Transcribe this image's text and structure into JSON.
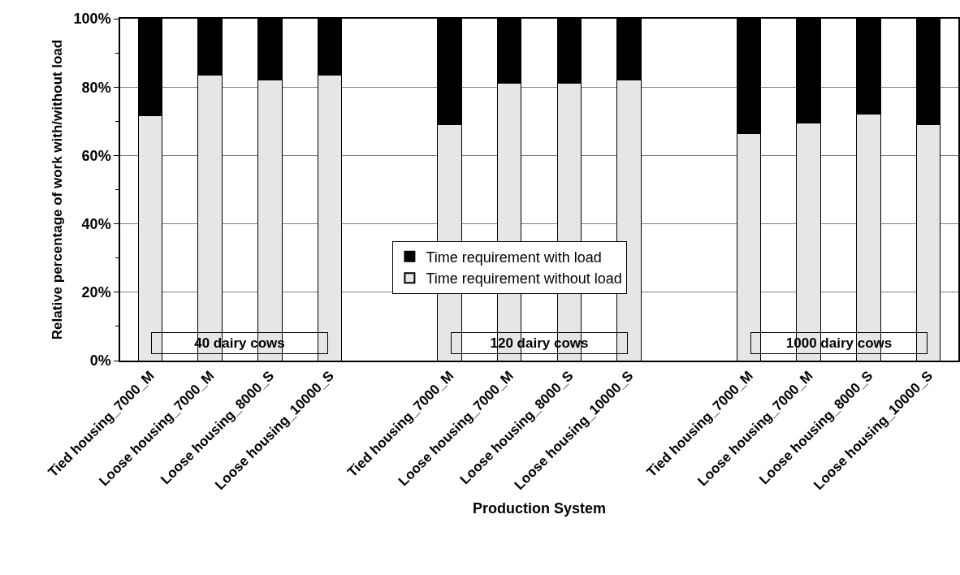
{
  "chart_data": {
    "type": "bar",
    "stacked": true,
    "xlabel": "Production System",
    "ylabel": "Relative percentage of work with/without load",
    "categories": [
      "Tied housing_7000_M",
      "Loose housing_7000_M",
      "Loose housing_8000_S",
      "Loose housing_10000_S",
      null,
      "Tied housing_7000_M",
      "Loose housing_7000_M",
      "Loose housing_8000_S",
      "Loose housing_10000_S",
      null,
      "Tied housing_7000_M",
      "Loose housing_7000_M",
      "Loose housing_8000_S",
      "Loose housing_10000_S"
    ],
    "series": [
      {
        "name": "Time requirement without load",
        "color": "#e6e6e6",
        "values": [
          71.5,
          83.5,
          82,
          83.5,
          null,
          69,
          81,
          81,
          82,
          null,
          66.5,
          69.5,
          72,
          69
        ]
      },
      {
        "name": "Time requirement with load",
        "color": "#000000",
        "values": [
          28.5,
          16.5,
          18,
          16.5,
          null,
          31,
          19,
          19,
          18,
          null,
          33.5,
          30.5,
          28,
          31
        ]
      }
    ],
    "ylim": [
      0,
      100
    ],
    "yticks": [
      {
        "value": 0,
        "label": "0%"
      },
      {
        "value": 10,
        "label": null
      },
      {
        "value": 20,
        "label": "20%"
      },
      {
        "value": 30,
        "label": null
      },
      {
        "value": 40,
        "label": "40%"
      },
      {
        "value": 50,
        "label": null
      },
      {
        "value": 60,
        "label": "60%"
      },
      {
        "value": 70,
        "label": null
      },
      {
        "value": 80,
        "label": "80%"
      },
      {
        "value": 90,
        "label": null
      },
      {
        "value": 100,
        "label": "100%"
      }
    ],
    "grid": "y",
    "legend": "center",
    "annotations": [
      "40 dairy cows",
      "120 dairy cows",
      "1000 dairy cows"
    ]
  }
}
